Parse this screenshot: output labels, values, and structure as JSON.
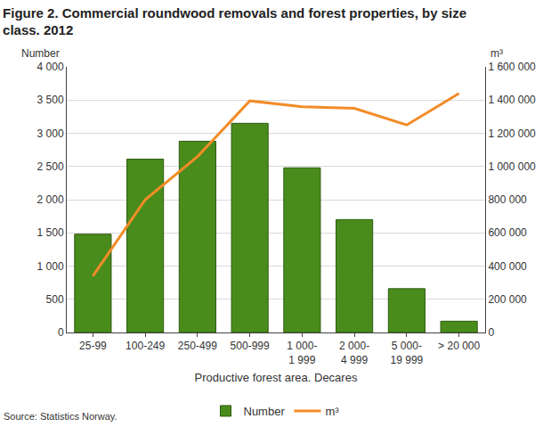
{
  "chart_data": {
    "type": "bar",
    "title": "Figure 2. Commercial roundwood removals and forest properties, by size class. 2012",
    "x_label": "Productive forest area. Decares",
    "y_label": "Number",
    "y2_label": "m³",
    "source": "Source: Statistics Norway.",
    "categories": [
      "25-99",
      "100-249",
      "250-499",
      "500-999",
      "1 000-1 999",
      "2 000-4 999",
      "5 000-19 999",
      "> 20 000"
    ],
    "series": [
      {
        "name": "Number",
        "type": "bar",
        "color": "#4a8c1c",
        "values": [
          1480,
          2610,
          2880,
          3150,
          2480,
          1700,
          660,
          170
        ]
      },
      {
        "name": "m³",
        "type": "line",
        "axis": "y2",
        "color": "#f28c28",
        "values": [
          340000,
          800000,
          1060000,
          1395000,
          1360000,
          1350000,
          1250000,
          1440000
        ]
      }
    ],
    "ylim": [
      0,
      4000
    ],
    "yticks": [
      0,
      500,
      {
        "value": 1000,
        "label": "1 000"
      },
      {
        "value": 1500,
        "label": "1 500"
      },
      {
        "value": 2000,
        "label": "2 000"
      },
      {
        "value": 2500,
        "label": "2 500"
      },
      {
        "value": 3000,
        "label": "3 000"
      },
      {
        "value": 3500,
        "label": "3 500"
      },
      {
        "value": 4000,
        "label": "4 000"
      }
    ],
    "y2lim": [
      0,
      1600000
    ],
    "y2ticks": [
      0,
      {
        "value": 200000,
        "label": "200 000"
      },
      {
        "value": 400000,
        "label": "400 000"
      },
      {
        "value": 600000,
        "label": "600 000"
      },
      {
        "value": 800000,
        "label": "800 000"
      },
      {
        "value": 1000000,
        "label": "1 000 000"
      },
      {
        "value": 1200000,
        "label": "1 200 000"
      },
      {
        "value": 1400000,
        "label": "1 400 000"
      },
      {
        "value": 1600000,
        "label": "1 600 000"
      }
    ],
    "grid": true,
    "legend": "bottom"
  }
}
